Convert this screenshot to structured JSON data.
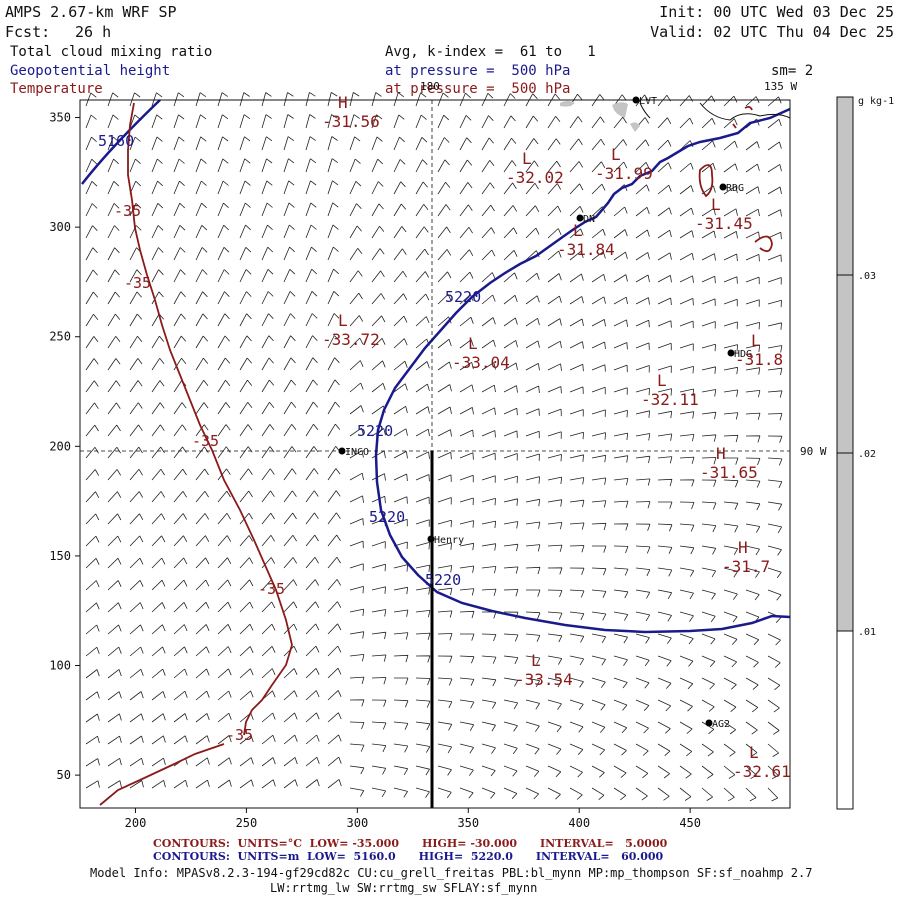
{
  "header": {
    "model": "AMPS 2.67-km WRF SP",
    "init": "Init: 00 UTC Wed 03 Dec 25",
    "fcst_label": "Fcst:",
    "fcst_value": "26 h",
    "valid": "Valid: 02 UTC Thu 04 Dec 25",
    "field1": "Total cloud mixing ratio",
    "field2": "Geopotential height",
    "field3": "Temperature",
    "avg": "Avg, k-index =  61 to   1",
    "pressure1": "at pressure =  500 hPa",
    "pressure2": "at pressure =  500 hPa",
    "sm": "sm= 2",
    "lon180": "180",
    "lon135": "135 W",
    "lon90": "90 W"
  },
  "colorbar": {
    "unit": "g kg-1",
    "ticks": [
      ".03",
      ".02",
      ".01"
    ],
    "shaded_range": [
      0.01,
      0.035
    ],
    "colors": {
      "fill": "#c4c4c4",
      "empty": "#ffffff"
    }
  },
  "axes": {
    "x_ticks": [
      "200",
      "250",
      "300",
      "350",
      "400",
      "450"
    ],
    "y_ticks": [
      "350",
      "300",
      "250",
      "200",
      "150",
      "100",
      "50"
    ],
    "xlim": [
      175,
      495
    ],
    "ylim": [
      35,
      358
    ]
  },
  "stations": [
    "LVT",
    "RDG",
    "DN",
    "HDG",
    "INCO",
    "Henry",
    "AG2"
  ],
  "extrema": [
    {
      "type": "H",
      "value": "-31.56"
    },
    {
      "type": "L",
      "value": "-32.02"
    },
    {
      "type": "L",
      "value": "-31.99"
    },
    {
      "type": "L",
      "value": "-31.45"
    },
    {
      "type": "L",
      "value": "-31.84"
    },
    {
      "type": "L",
      "value": "-33.72"
    },
    {
      "type": "L",
      "value": "-33.04"
    },
    {
      "type": "L",
      "value": "-31.8"
    },
    {
      "type": "L",
      "value": "-32.11"
    },
    {
      "type": "H",
      "value": "-31.65"
    },
    {
      "type": "H",
      "value": "-31.7"
    },
    {
      "type": "L",
      "value": "-33.54"
    },
    {
      "type": "L",
      "value": "-32.61"
    }
  ],
  "contour_labels": {
    "height": [
      "5160",
      "5220",
      "5220",
      "5220",
      "5220"
    ],
    "temperature": [
      "-35",
      "-35",
      "-35",
      "-35",
      "-35"
    ]
  },
  "footer": {
    "temp_contours": "CONTOURS:  UNITS=°C  LOW= -35.000      HIGH= -30.000      INTERVAL=   5.0000",
    "hgt_contours": "CONTOURS:  UNITS=m  LOW=  5160.0      HIGH=  5220.0      INTERVAL=   60.000",
    "model_info": "Model Info: MPASv8.2.3-194-gf29cd82c CU:cu_grell_freitas PBL:bl_mynn MP:mp_thompson SF:sf_noahmp 2.7",
    "physics": "LW:rrtmg_lw SW:rrtmg_sw SFLAY:sf_mynn"
  },
  "colors": {
    "temperature": "#8b1a1a",
    "height": "#1a1a8c",
    "text": "#111111"
  }
}
